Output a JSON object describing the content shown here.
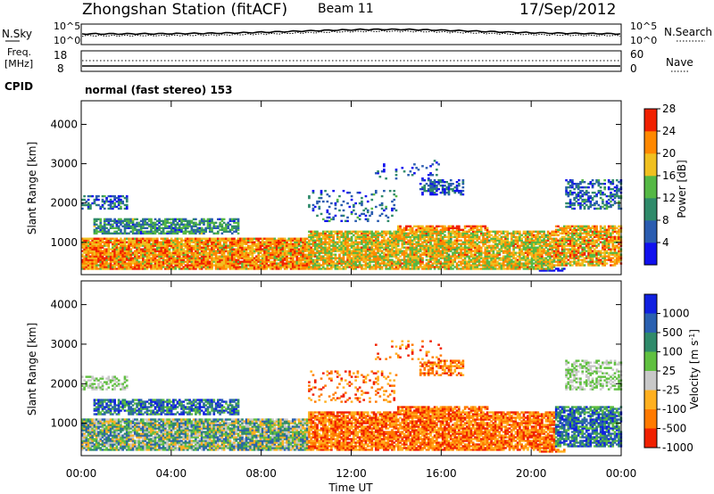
{
  "header": {
    "station": "Zhongshan Station (fitACF)",
    "beam": "Beam 11",
    "date": "17/Sep/2012"
  },
  "sky_panel": {
    "left_label": "N.Sky",
    "right_label": "N.Search",
    "left_ticks": [
      "10^5",
      "10^0"
    ],
    "right_ticks": [
      "10^5",
      "10^0"
    ]
  },
  "freq_panel": {
    "left_label_1": "Freq.",
    "left_label_2": "[MHz]",
    "right_label": "Nave",
    "left_ticks": [
      "18",
      "8"
    ],
    "right_ticks": [
      "60",
      "0"
    ]
  },
  "cpid": {
    "label": "CPID",
    "mode": "normal (fast stereo) 153"
  },
  "chart_data": [
    {
      "type": "heatmap",
      "panel": "power",
      "ylabel": "Slant Range [km]",
      "ylim": [
        180,
        4600
      ],
      "yticks": [
        "1000",
        "2000",
        "3000",
        "4000"
      ],
      "xlim": [
        "00:00",
        "24:00"
      ],
      "colorbar": {
        "label": "Power [dB]",
        "ticks": [
          "4",
          "8",
          "12",
          "16",
          "20",
          "24",
          "28"
        ],
        "colors": [
          "#1010ee",
          "#2a5cb0",
          "#2f8a6a",
          "#55b845",
          "#f0c020",
          "#ff8800",
          "#f02000"
        ]
      }
    },
    {
      "type": "heatmap",
      "panel": "velocity",
      "ylabel": "Slant Range [km]",
      "ylim": [
        180,
        4600
      ],
      "yticks": [
        "1000",
        "2000",
        "3000",
        "4000"
      ],
      "xlim": [
        "00:00",
        "24:00"
      ],
      "xticks": [
        "00:00",
        "04:00",
        "08:00",
        "12:00",
        "16:00",
        "20:00",
        "00:00"
      ],
      "xlabel": "Time UT",
      "colorbar": {
        "label": "Velocity [m s^-1]",
        "ticks": [
          "1000",
          "500",
          "100",
          "25",
          "-25",
          "-100",
          "-500",
          "-1000"
        ],
        "colors": [
          "#1020e0",
          "#2a60b0",
          "#2f8a6a",
          "#60c040",
          "#c8c8c8",
          "#ffb020",
          "#ff7a00",
          "#f02000"
        ]
      }
    }
  ]
}
